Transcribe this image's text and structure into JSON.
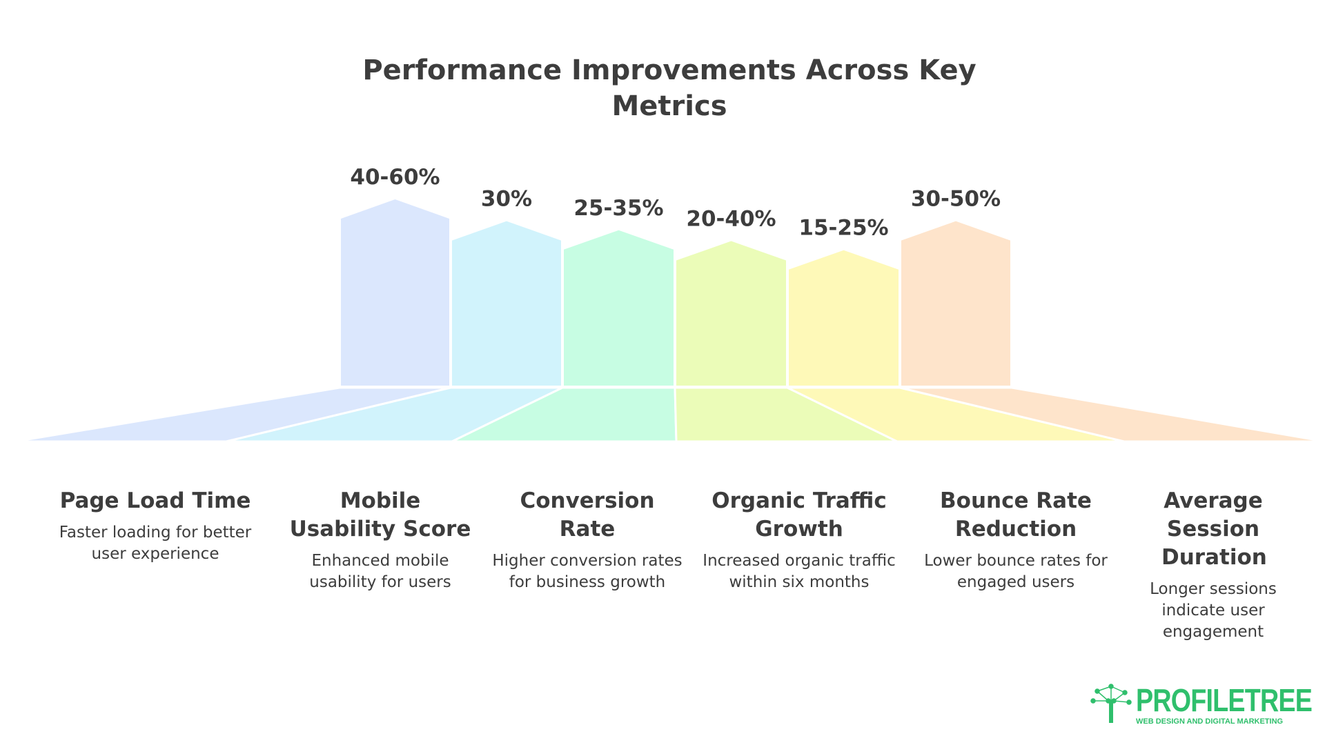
{
  "title": "Performance Improvements Across Key Metrics",
  "chart_data": {
    "type": "bar",
    "categories": [
      "Page Load Time",
      "Mobile Usability Score",
      "Conversion Rate",
      "Organic Traffic Growth",
      "Bounce Rate Reduction",
      "Average Session Duration"
    ],
    "value_labels": [
      "40-60%",
      "30%",
      "25-35%",
      "20-40%",
      "15-25%",
      "30-50%"
    ],
    "relative_heights": [
      1.0,
      0.88,
      0.83,
      0.77,
      0.72,
      0.88
    ],
    "colors": [
      "#dbe7fd",
      "#d1f3fc",
      "#c7fde3",
      "#ebfcb8",
      "#fef9b8",
      "#fee4cb"
    ]
  },
  "metrics": [
    {
      "title": "Page Load Time",
      "description": "Faster loading for better user experience"
    },
    {
      "title": "Mobile Usability Score",
      "description": "Enhanced mobile usability for users"
    },
    {
      "title": "Conversion Rate",
      "description": "Higher conversion rates for business growth"
    },
    {
      "title": "Organic Traffic Growth",
      "description": "Increased organic traffic within six months"
    },
    {
      "title": "Bounce Rate Reduction",
      "description": "Lower bounce rates for engaged users"
    },
    {
      "title": "Average Session Duration",
      "description": "Longer sessions indicate user engagement"
    }
  ],
  "logo": {
    "brand": "PROFILETREE",
    "tagline": "WEB DESIGN AND DIGITAL MARKETING",
    "color": "#2fbf6c"
  }
}
